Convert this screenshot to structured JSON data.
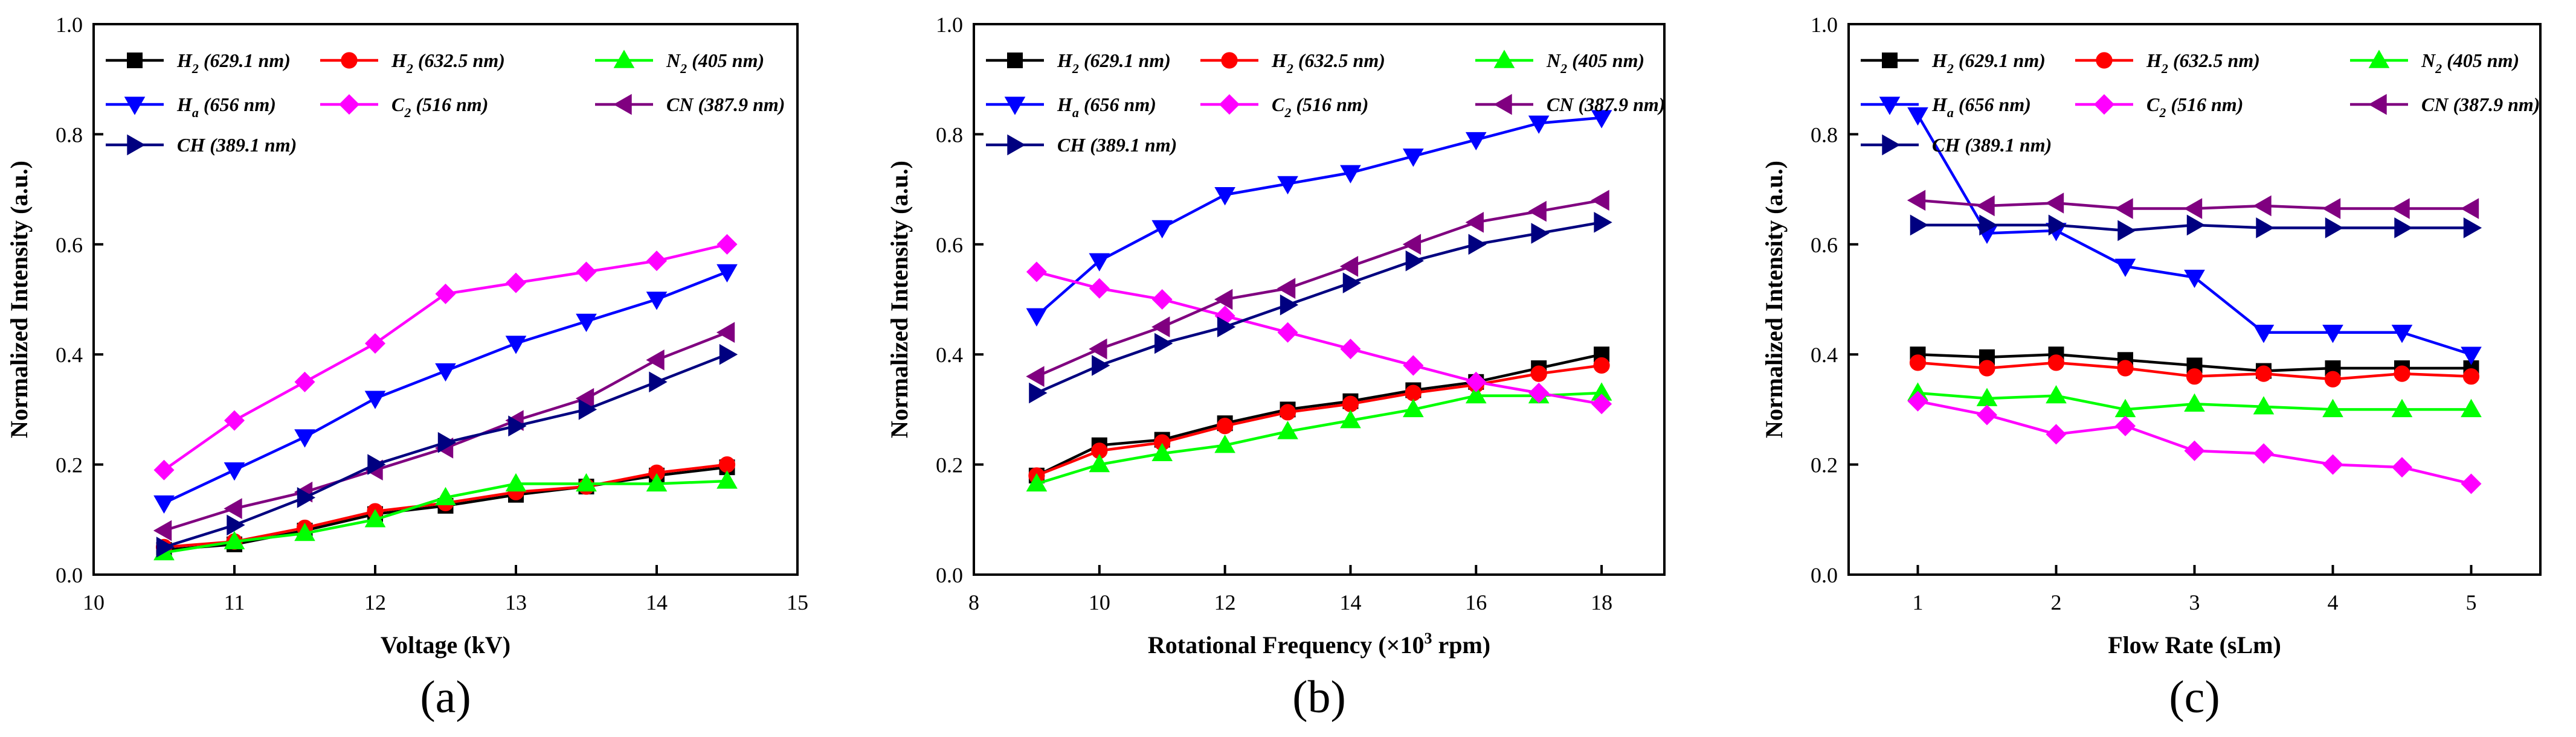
{
  "figure_labels": [
    "(a)",
    "(b)",
    "(c)"
  ],
  "series_defs": [
    {
      "name_base": "H",
      "name_sub": "2",
      "name_rest": " (629.1 nm)",
      "color": "#000000",
      "marker": "square"
    },
    {
      "name_base": "H",
      "name_sub": "2",
      "name_rest": " (632.5 nm)",
      "color": "#ff0000",
      "marker": "circle"
    },
    {
      "name_base": "N",
      "name_sub": "2",
      "name_rest": " (405 nm)",
      "color": "#00ff00",
      "marker": "triangle-up"
    },
    {
      "name_base": "H",
      "name_sub": "a",
      "name_rest": " (656 nm)",
      "color": "#0000ff",
      "marker": "triangle-down"
    },
    {
      "name_base": "C",
      "name_sub": "2",
      "name_rest": " (516 nm)",
      "color": "#ff00ff",
      "marker": "diamond"
    },
    {
      "name_base": "CN",
      "name_sub": "",
      "name_rest": " (387.9 nm)",
      "color": "#800080",
      "marker": "triangle-left"
    },
    {
      "name_base": "CH",
      "name_sub": "",
      "name_rest": " (389.1 nm)",
      "color": "#000080",
      "marker": "triangle-right"
    }
  ],
  "chart_data": [
    {
      "type": "line",
      "label": "(a)",
      "xlabel": "Voltage (kV)",
      "ylabel": "Normalized Intensity (a.u.)",
      "xlim": [
        10,
        15
      ],
      "ylim": [
        0,
        1
      ],
      "xticks": [
        "10",
        "11",
        "12",
        "13",
        "14",
        "15"
      ],
      "yticks": [
        "0.0",
        "0.2",
        "0.4",
        "0.6",
        "0.8",
        "1.0"
      ],
      "x": [
        10.5,
        11,
        11.5,
        12,
        12.5,
        13,
        13.5,
        14,
        14.5
      ],
      "series": [
        {
          "name": "H2 (629.1 nm)",
          "values": [
            0.045,
            0.055,
            0.08,
            0.11,
            0.125,
            0.145,
            0.16,
            0.18,
            0.195
          ]
        },
        {
          "name": "H2 (632.5 nm)",
          "values": [
            0.05,
            0.06,
            0.085,
            0.115,
            0.13,
            0.15,
            0.16,
            0.185,
            0.2
          ]
        },
        {
          "name": "N2 (405 nm)",
          "values": [
            0.04,
            0.06,
            0.075,
            0.1,
            0.14,
            0.165,
            0.165,
            0.165,
            0.17
          ]
        },
        {
          "name": "Ha (656 nm)",
          "values": [
            0.13,
            0.19,
            0.25,
            0.32,
            0.37,
            0.42,
            0.46,
            0.5,
            0.55
          ]
        },
        {
          "name": "C2 (516 nm)",
          "values": [
            0.19,
            0.28,
            0.35,
            0.42,
            0.51,
            0.53,
            0.55,
            0.57,
            0.6
          ]
        },
        {
          "name": "CN (387.9 nm)",
          "values": [
            0.08,
            0.12,
            0.15,
            0.19,
            0.23,
            0.28,
            0.32,
            0.39,
            0.44
          ]
        },
        {
          "name": "CH (389.1 nm)",
          "values": [
            0.05,
            0.09,
            0.14,
            0.2,
            0.24,
            0.27,
            0.3,
            0.35,
            0.4
          ]
        }
      ]
    },
    {
      "type": "line",
      "label": "(b)",
      "xlabel": "Rotational Frequency (×10³ rpm)",
      "xlabel_main": "Rotational Frequency (×10",
      "xlabel_sup": "3",
      "xlabel_tail": " rpm)",
      "ylabel": "Normalized Intensity (a.u.)",
      "xlim": [
        8,
        19
      ],
      "ylim": [
        0,
        1
      ],
      "xticks": [
        "8",
        "10",
        "12",
        "14",
        "16",
        "18"
      ],
      "yticks": [
        "0.0",
        "0.2",
        "0.4",
        "0.6",
        "0.8",
        "1.0"
      ],
      "x": [
        9,
        10,
        11,
        12,
        13,
        14,
        15,
        16,
        17,
        18
      ],
      "series": [
        {
          "name": "H2 (629.1 nm)",
          "values": [
            0.18,
            0.235,
            0.245,
            0.275,
            0.3,
            0.315,
            0.335,
            0.35,
            0.375,
            0.4
          ]
        },
        {
          "name": "H2 (632.5 nm)",
          "values": [
            0.18,
            0.225,
            0.24,
            0.27,
            0.295,
            0.31,
            0.33,
            0.345,
            0.365,
            0.38
          ]
        },
        {
          "name": "N2 (405 nm)",
          "values": [
            0.165,
            0.2,
            0.22,
            0.235,
            0.26,
            0.28,
            0.3,
            0.325,
            0.325,
            0.33
          ]
        },
        {
          "name": "Ha (656 nm)",
          "values": [
            0.47,
            0.57,
            0.63,
            0.69,
            0.71,
            0.73,
            0.76,
            0.79,
            0.82,
            0.83
          ]
        },
        {
          "name": "C2 (516 nm)",
          "values": [
            0.55,
            0.52,
            0.5,
            0.47,
            0.44,
            0.41,
            0.38,
            0.35,
            0.33,
            0.31
          ]
        },
        {
          "name": "CN (387.9 nm)",
          "values": [
            0.36,
            0.41,
            0.45,
            0.5,
            0.52,
            0.56,
            0.6,
            0.64,
            0.66,
            0.68
          ]
        },
        {
          "name": "CH (389.1 nm)",
          "values": [
            0.33,
            0.38,
            0.42,
            0.45,
            0.49,
            0.53,
            0.57,
            0.6,
            0.62,
            0.64
          ]
        }
      ]
    },
    {
      "type": "line",
      "label": "(c)",
      "xlabel": "Flow Rate (sLm)",
      "ylabel": "Normalized Intensity (a.u.)",
      "xlim": [
        0.5,
        5.5
      ],
      "ylim": [
        0,
        1
      ],
      "xticks": [
        "1",
        "2",
        "3",
        "4",
        "5"
      ],
      "xtick_vals": [
        1,
        2,
        3,
        4,
        5
      ],
      "yticks": [
        "0.0",
        "0.2",
        "0.4",
        "0.6",
        "0.8",
        "1.0"
      ],
      "x": [
        1,
        1.5,
        2,
        2.5,
        3,
        3.5,
        4,
        4.5,
        5
      ],
      "series": [
        {
          "name": "H2 (629.1 nm)",
          "values": [
            0.4,
            0.395,
            0.4,
            0.39,
            0.38,
            0.37,
            0.375,
            0.375,
            0.375
          ]
        },
        {
          "name": "H2 (632.5 nm)",
          "values": [
            0.385,
            0.375,
            0.385,
            0.375,
            0.36,
            0.365,
            0.355,
            0.365,
            0.36
          ]
        },
        {
          "name": "N2 (405 nm)",
          "values": [
            0.33,
            0.32,
            0.325,
            0.3,
            0.31,
            0.305,
            0.3,
            0.3,
            0.3
          ]
        },
        {
          "name": "Ha (656 nm)",
          "values": [
            0.835,
            0.62,
            0.625,
            0.56,
            0.54,
            0.44,
            0.44,
            0.44,
            0.4
          ]
        },
        {
          "name": "C2 (516 nm)",
          "values": [
            0.315,
            0.29,
            0.255,
            0.27,
            0.225,
            0.22,
            0.2,
            0.195,
            0.165
          ]
        },
        {
          "name": "CN (387.9 nm)",
          "values": [
            0.68,
            0.67,
            0.675,
            0.665,
            0.665,
            0.67,
            0.665,
            0.665,
            0.665
          ]
        },
        {
          "name": "CH (389.1 nm)",
          "values": [
            0.635,
            0.635,
            0.635,
            0.625,
            0.635,
            0.63,
            0.63,
            0.63,
            0.63
          ]
        }
      ]
    }
  ]
}
